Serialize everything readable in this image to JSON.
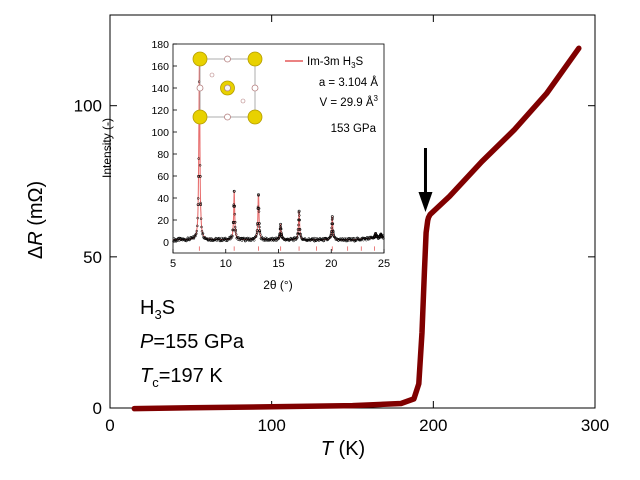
{
  "chart_data": [
    {
      "type": "line",
      "xlabel_italic": "T",
      "xlabel_unit": " (K)",
      "ylabel_delta": "Δ",
      "ylabel_italic": "R",
      "ylabel_unit": " (mΩ)",
      "xlim": [
        0,
        300
      ],
      "ylim": [
        0,
        130
      ],
      "x_ticks": [
        0,
        100,
        200,
        300
      ],
      "y_ticks": [
        0,
        50,
        100
      ],
      "color": "#800000",
      "series": [
        {
          "x": [
            15,
            50,
            100,
            150,
            180,
            188,
            191,
            193,
            194.5,
            195.5,
            196.5,
            197,
            198,
            210,
            230,
            250,
            270,
            290
          ],
          "y": [
            -0.2,
            0.1,
            0.4,
            0.8,
            1.5,
            3,
            8,
            25,
            45,
            58,
            62,
            63,
            64,
            70,
            81.5,
            92,
            104,
            119
          ]
        }
      ],
      "annotations": {
        "compound": "H",
        "compound_sub": "3",
        "compound_tail": "S",
        "pressure_italic": "P",
        "pressure_text": "=155 GPa",
        "tc_italic": "T",
        "tc_sub": "c",
        "tc_text": "=197 K",
        "arrow_x": 197
      }
    },
    {
      "type": "scatter",
      "inset": true,
      "xlabel": "2θ (°)",
      "ylabel": "Intensity (-)",
      "xlim": [
        5,
        25
      ],
      "ylim": [
        -10,
        180
      ],
      "x_ticks": [
        5,
        10,
        15,
        20,
        25
      ],
      "y_ticks": [
        0,
        20,
        40,
        60,
        80,
        100,
        120,
        140,
        160,
        180
      ],
      "legend": {
        "label_main": "Im-3m H",
        "label_sub": "3",
        "label_tail": "S",
        "color": "#e87070",
        "position": "top-right"
      },
      "info": {
        "a": "a = 3.104 Å",
        "v_main": "V = 29.9 Å",
        "v_sup": "3",
        "pressure": "153 GPa"
      },
      "peaks": [
        {
          "pos": 7.5,
          "h": 160
        },
        {
          "pos": 10.8,
          "h": 44
        },
        {
          "pos": 13.1,
          "h": 41
        },
        {
          "pos": 15.2,
          "h": 14
        },
        {
          "pos": 16.95,
          "h": 26
        },
        {
          "pos": 20.1,
          "h": 21
        },
        {
          "pos": 24.2,
          "h": 4
        },
        {
          "pos": 24.7,
          "h": 3
        }
      ],
      "bragg_ticks": [
        7.5,
        10.8,
        13.1,
        15.2,
        16.95,
        18.6,
        20.1,
        21.55,
        22.85,
        24.1
      ]
    }
  ]
}
